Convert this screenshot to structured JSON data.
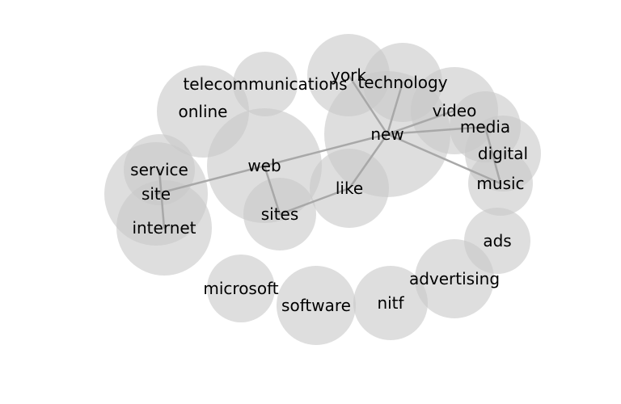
{
  "nodes": [
    {
      "id": "telecommunications",
      "label": "telecommunications"
    },
    {
      "id": "online",
      "label": "online"
    },
    {
      "id": "york",
      "label": "york"
    },
    {
      "id": "technology",
      "label": "technology"
    },
    {
      "id": "video",
      "label": "video"
    },
    {
      "id": "new",
      "label": "new"
    },
    {
      "id": "media",
      "label": "media"
    },
    {
      "id": "digital",
      "label": "digital"
    },
    {
      "id": "music",
      "label": "music"
    },
    {
      "id": "web",
      "label": "web"
    },
    {
      "id": "service",
      "label": "service"
    },
    {
      "id": "site",
      "label": "site"
    },
    {
      "id": "like",
      "label": "like"
    },
    {
      "id": "sites",
      "label": "sites"
    },
    {
      "id": "internet",
      "label": "internet"
    },
    {
      "id": "ads",
      "label": "ads"
    },
    {
      "id": "advertising",
      "label": "advertising"
    },
    {
      "id": "microsoft",
      "label": "microsoft"
    },
    {
      "id": "software",
      "label": "software"
    },
    {
      "id": "nitf",
      "label": "nitf"
    }
  ],
  "edges": [
    {
      "source": "new",
      "target": "york"
    },
    {
      "source": "new",
      "target": "technology"
    },
    {
      "source": "new",
      "target": "video"
    },
    {
      "source": "new",
      "target": "media"
    },
    {
      "source": "new",
      "target": "music"
    },
    {
      "source": "new",
      "target": "like"
    },
    {
      "source": "new",
      "target": "site"
    },
    {
      "source": "media",
      "target": "music"
    },
    {
      "source": "web",
      "target": "sites"
    },
    {
      "source": "like",
      "target": "sites"
    },
    {
      "source": "service",
      "target": "internet"
    }
  ]
}
